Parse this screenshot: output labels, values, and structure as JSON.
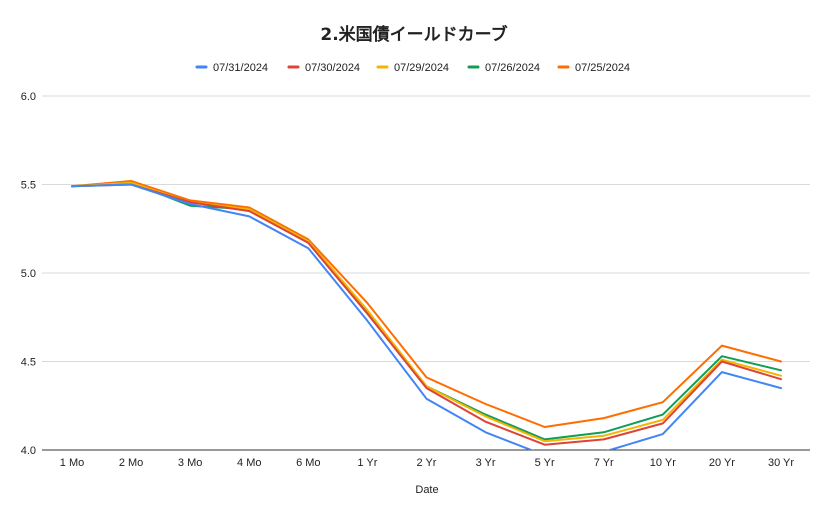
{
  "chart_data": {
    "type": "line",
    "title": "2.米国債イールドカーブ",
    "xlabel": "Date",
    "ylabel": "",
    "ylim": [
      4.0,
      6.0
    ],
    "yticks": [
      "4.0",
      "4.5",
      "5.0",
      "5.5",
      "6.0"
    ],
    "grid": true,
    "legend_position": "top",
    "categories": [
      "1 Mo",
      "2 Mo",
      "3 Mo",
      "4 Mo",
      "6 Mo",
      "1 Yr",
      "2 Yr",
      "3 Yr",
      "5 Yr",
      "7 Yr",
      "10 Yr",
      "20 Yr",
      "30 Yr"
    ],
    "series": [
      {
        "name": "07/31/2024",
        "color": "#4285f4",
        "values": [
          5.49,
          5.5,
          5.39,
          5.32,
          5.14,
          4.73,
          4.29,
          4.1,
          3.97,
          3.99,
          4.09,
          4.44,
          4.35
        ]
      },
      {
        "name": "07/30/2024",
        "color": "#db4437",
        "values": [
          5.49,
          5.5,
          5.4,
          5.35,
          5.17,
          4.77,
          4.35,
          4.16,
          4.03,
          4.06,
          4.15,
          4.5,
          4.4
        ]
      },
      {
        "name": "07/29/2024",
        "color": "#f4b400",
        "values": [
          5.49,
          5.51,
          5.4,
          5.36,
          5.18,
          4.79,
          4.36,
          4.19,
          4.05,
          4.08,
          4.17,
          4.51,
          4.42
        ]
      },
      {
        "name": "07/26/2024",
        "color": "#0f9d58",
        "values": [
          5.49,
          5.51,
          5.38,
          5.36,
          5.18,
          4.78,
          4.36,
          4.2,
          4.06,
          4.1,
          4.2,
          4.53,
          4.45
        ]
      },
      {
        "name": "07/25/2024",
        "color": "#ff6d01",
        "values": [
          5.49,
          5.52,
          5.41,
          5.37,
          5.19,
          4.83,
          4.41,
          4.26,
          4.13,
          4.18,
          4.27,
          4.59,
          4.5
        ]
      }
    ]
  }
}
